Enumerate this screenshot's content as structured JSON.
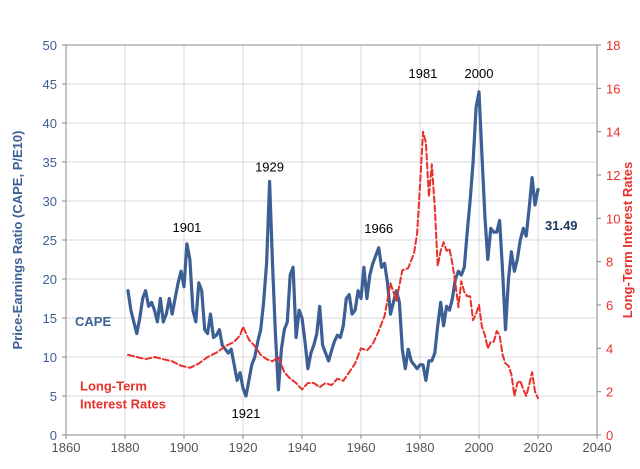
{
  "chart_data": {
    "type": "line",
    "x_axis": {
      "min": 1860,
      "max": 2040,
      "ticks": [
        1860,
        1880,
        1900,
        1920,
        1940,
        1960,
        1980,
        2000,
        2020,
        2040
      ]
    },
    "y_left": {
      "label": "Price-Earnings Ratio (CAPE, P/E10)",
      "min": 0,
      "max": 50,
      "ticks": [
        0,
        5,
        10,
        15,
        20,
        25,
        30,
        35,
        40,
        45,
        50
      ]
    },
    "y_right": {
      "label": "Long-Term Interest Rates",
      "min": 0,
      "max": 18,
      "ticks": [
        0,
        2,
        4,
        6,
        8,
        10,
        12,
        14,
        16,
        18
      ]
    },
    "grid": true,
    "series": [
      {
        "name": "CAPE",
        "axis": "left",
        "color": "#3c5f95",
        "points": [
          [
            1881,
            18.5
          ],
          [
            1882,
            16.0
          ],
          [
            1883,
            14.5
          ],
          [
            1884,
            13.0
          ],
          [
            1885,
            15.0
          ],
          [
            1886,
            17.5
          ],
          [
            1887,
            18.5
          ],
          [
            1888,
            16.5
          ],
          [
            1889,
            17.0
          ],
          [
            1890,
            16.0
          ],
          [
            1891,
            14.5
          ],
          [
            1892,
            17.5
          ],
          [
            1893,
            14.5
          ],
          [
            1894,
            15.5
          ],
          [
            1895,
            17.5
          ],
          [
            1896,
            15.5
          ],
          [
            1897,
            17.5
          ],
          [
            1898,
            19.5
          ],
          [
            1899,
            21.0
          ],
          [
            1900,
            19.0
          ],
          [
            1901,
            24.5
          ],
          [
            1902,
            22.5
          ],
          [
            1903,
            16.0
          ],
          [
            1904,
            14.5
          ],
          [
            1905,
            19.5
          ],
          [
            1906,
            18.5
          ],
          [
            1907,
            13.5
          ],
          [
            1908,
            13.0
          ],
          [
            1909,
            15.5
          ],
          [
            1910,
            12.5
          ],
          [
            1911,
            12.8
          ],
          [
            1912,
            13.5
          ],
          [
            1913,
            11.5
          ],
          [
            1914,
            11.0
          ],
          [
            1915,
            10.5
          ],
          [
            1916,
            11.0
          ],
          [
            1917,
            9.0
          ],
          [
            1918,
            7.0
          ],
          [
            1919,
            8.0
          ],
          [
            1920,
            6.0
          ],
          [
            1921,
            5.0
          ],
          [
            1922,
            7.0
          ],
          [
            1923,
            9.0
          ],
          [
            1924,
            10.0
          ],
          [
            1925,
            12.0
          ],
          [
            1926,
            13.5
          ],
          [
            1927,
            17.0
          ],
          [
            1928,
            22.0
          ],
          [
            1929,
            32.5
          ],
          [
            1930,
            22.0
          ],
          [
            1931,
            13.0
          ],
          [
            1932,
            5.8
          ],
          [
            1933,
            11.0
          ],
          [
            1934,
            13.5
          ],
          [
            1935,
            14.5
          ],
          [
            1936,
            20.5
          ],
          [
            1937,
            21.5
          ],
          [
            1938,
            12.5
          ],
          [
            1939,
            16.0
          ],
          [
            1940,
            15.0
          ],
          [
            1941,
            12.0
          ],
          [
            1942,
            8.5
          ],
          [
            1943,
            10.5
          ],
          [
            1944,
            11.5
          ],
          [
            1945,
            13.0
          ],
          [
            1946,
            16.5
          ],
          [
            1947,
            11.5
          ],
          [
            1948,
            10.5
          ],
          [
            1949,
            9.5
          ],
          [
            1950,
            10.8
          ],
          [
            1951,
            12.0
          ],
          [
            1952,
            12.8
          ],
          [
            1953,
            12.5
          ],
          [
            1954,
            14.0
          ],
          [
            1955,
            17.5
          ],
          [
            1956,
            18.0
          ],
          [
            1957,
            15.5
          ],
          [
            1958,
            16.0
          ],
          [
            1959,
            18.5
          ],
          [
            1960,
            17.5
          ],
          [
            1961,
            21.5
          ],
          [
            1962,
            17.5
          ],
          [
            1963,
            20.5
          ],
          [
            1964,
            22.0
          ],
          [
            1965,
            23.0
          ],
          [
            1966,
            24.0
          ],
          [
            1967,
            21.5
          ],
          [
            1968,
            22.0
          ],
          [
            1969,
            19.5
          ],
          [
            1970,
            15.5
          ],
          [
            1971,
            17.0
          ],
          [
            1972,
            18.5
          ],
          [
            1973,
            17.0
          ],
          [
            1974,
            11.0
          ],
          [
            1975,
            8.5
          ],
          [
            1976,
            11.0
          ],
          [
            1977,
            9.5
          ],
          [
            1978,
            9.0
          ],
          [
            1979,
            8.5
          ],
          [
            1980,
            9.0
          ],
          [
            1981,
            9.0
          ],
          [
            1982,
            7.0
          ],
          [
            1983,
            9.5
          ],
          [
            1984,
            9.5
          ],
          [
            1985,
            10.5
          ],
          [
            1986,
            14.0
          ],
          [
            1987,
            17.0
          ],
          [
            1988,
            14.0
          ],
          [
            1989,
            16.5
          ],
          [
            1990,
            16.0
          ],
          [
            1991,
            17.5
          ],
          [
            1992,
            20.0
          ],
          [
            1993,
            21.0
          ],
          [
            1994,
            20.5
          ],
          [
            1995,
            21.5
          ],
          [
            1996,
            26.0
          ],
          [
            1997,
            30.0
          ],
          [
            1998,
            35.0
          ],
          [
            1999,
            42.0
          ],
          [
            2000,
            44.0
          ],
          [
            2001,
            36.0
          ],
          [
            2002,
            28.0
          ],
          [
            2003,
            22.5
          ],
          [
            2004,
            26.5
          ],
          [
            2005,
            26.0
          ],
          [
            2006,
            26.0
          ],
          [
            2007,
            27.5
          ],
          [
            2008,
            21.0
          ],
          [
            2009,
            13.5
          ],
          [
            2010,
            20.0
          ],
          [
            2011,
            23.5
          ],
          [
            2012,
            21.0
          ],
          [
            2013,
            22.5
          ],
          [
            2014,
            25.0
          ],
          [
            2015,
            26.5
          ],
          [
            2016,
            25.5
          ],
          [
            2017,
            29.0
          ],
          [
            2018,
            33.0
          ],
          [
            2019,
            29.5
          ],
          [
            2020,
            31.49
          ]
        ]
      },
      {
        "name": "Long-Term Interest Rates",
        "axis": "right",
        "color": "#e8312b",
        "dashed": true,
        "points": [
          [
            1881,
            3.7
          ],
          [
            1884,
            3.6
          ],
          [
            1887,
            3.5
          ],
          [
            1890,
            3.6
          ],
          [
            1893,
            3.5
          ],
          [
            1896,
            3.4
          ],
          [
            1899,
            3.2
          ],
          [
            1902,
            3.1
          ],
          [
            1905,
            3.3
          ],
          [
            1908,
            3.6
          ],
          [
            1911,
            3.8
          ],
          [
            1914,
            4.1
          ],
          [
            1917,
            4.3
          ],
          [
            1919,
            4.6
          ],
          [
            1920,
            5.0
          ],
          [
            1922,
            4.4
          ],
          [
            1924,
            4.1
          ],
          [
            1926,
            3.7
          ],
          [
            1928,
            3.5
          ],
          [
            1930,
            3.4
          ],
          [
            1932,
            3.6
          ],
          [
            1934,
            2.9
          ],
          [
            1936,
            2.6
          ],
          [
            1938,
            2.4
          ],
          [
            1940,
            2.1
          ],
          [
            1942,
            2.4
          ],
          [
            1944,
            2.4
          ],
          [
            1946,
            2.2
          ],
          [
            1948,
            2.4
          ],
          [
            1950,
            2.3
          ],
          [
            1952,
            2.6
          ],
          [
            1954,
            2.5
          ],
          [
            1956,
            2.9
          ],
          [
            1958,
            3.3
          ],
          [
            1960,
            4.0
          ],
          [
            1962,
            3.9
          ],
          [
            1964,
            4.2
          ],
          [
            1966,
            4.8
          ],
          [
            1968,
            5.5
          ],
          [
            1970,
            7.0
          ],
          [
            1972,
            6.2
          ],
          [
            1974,
            7.6
          ],
          [
            1976,
            7.7
          ],
          [
            1978,
            8.4
          ],
          [
            1979,
            9.3
          ],
          [
            1980,
            11.5
          ],
          [
            1981,
            14.0
          ],
          [
            1982,
            13.5
          ],
          [
            1983,
            11.0
          ],
          [
            1984,
            12.5
          ],
          [
            1985,
            10.5
          ],
          [
            1986,
            7.8
          ],
          [
            1987,
            8.5
          ],
          [
            1988,
            8.9
          ],
          [
            1989,
            8.5
          ],
          [
            1990,
            8.6
          ],
          [
            1991,
            7.9
          ],
          [
            1992,
            7.0
          ],
          [
            1993,
            5.9
          ],
          [
            1994,
            7.1
          ],
          [
            1995,
            6.6
          ],
          [
            1996,
            6.4
          ],
          [
            1997,
            6.4
          ],
          [
            1998,
            5.3
          ],
          [
            1999,
            5.6
          ],
          [
            2000,
            6.0
          ],
          [
            2001,
            5.0
          ],
          [
            2002,
            4.6
          ],
          [
            2003,
            4.0
          ],
          [
            2004,
            4.3
          ],
          [
            2005,
            4.3
          ],
          [
            2006,
            4.8
          ],
          [
            2007,
            4.6
          ],
          [
            2008,
            3.7
          ],
          [
            2009,
            3.3
          ],
          [
            2010,
            3.2
          ],
          [
            2011,
            2.8
          ],
          [
            2012,
            1.8
          ],
          [
            2013,
            2.4
          ],
          [
            2014,
            2.5
          ],
          [
            2015,
            2.1
          ],
          [
            2016,
            1.8
          ],
          [
            2017,
            2.3
          ],
          [
            2018,
            2.9
          ],
          [
            2019,
            2.0
          ],
          [
            2020,
            1.7
          ]
        ]
      }
    ],
    "annotations": [
      "1901",
      "1929",
      "1921",
      "1966",
      "1981",
      "2000",
      "31.49"
    ],
    "legend_labels": {
      "cape": "CAPE",
      "rates_line1": "Long-Term",
      "rates_line2": "Interest Rates"
    }
  }
}
